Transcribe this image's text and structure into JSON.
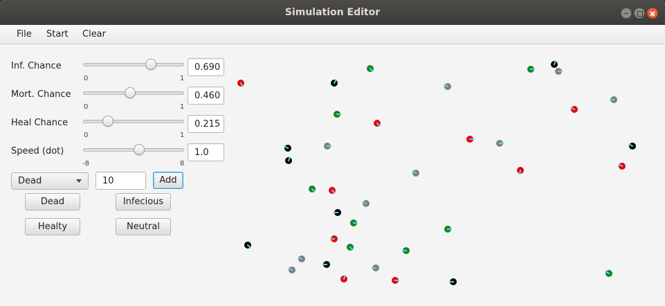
{
  "window": {
    "title": "Simulation Editor"
  },
  "menu": {
    "file": "File",
    "start": "Start",
    "clear": "Clear"
  },
  "sliders": [
    {
      "label": "Inf. Chance",
      "min_label": "0",
      "max_label": "1",
      "min": 0,
      "max": 1,
      "value": 0.69,
      "value_text": "0.690"
    },
    {
      "label": "Mort. Chance",
      "min_label": "0",
      "max_label": "1",
      "min": 0,
      "max": 1,
      "value": 0.46,
      "value_text": "0.460"
    },
    {
      "label": "Heal Chance",
      "min_label": "0",
      "max_label": "1",
      "min": 0,
      "max": 1,
      "value": 0.215,
      "value_text": "0.215"
    },
    {
      "label": "Speed (dot)",
      "min_label": "-8",
      "max_label": "8",
      "min": -8,
      "max": 8,
      "value": 1.0,
      "value_text": "1.0"
    }
  ],
  "add_row": {
    "type_selected": "Dead",
    "count_value": "10",
    "add_label": "Add"
  },
  "buttons": {
    "dead": "Dead",
    "infecious": "Infecious",
    "healty": "Healty",
    "neutral": "Neutral"
  },
  "colors": {
    "dead": "#000000",
    "infected": "#e8000b",
    "healthy": "#0a8a1c",
    "neutral": "#808080",
    "heading": "#5fd3e8"
  },
  "dots": [
    {
      "state": "infected"
    },
    {
      "state": "dead"
    },
    {
      "state": "healthy"
    },
    {
      "state": "neutral"
    },
    {
      "state": "healthy"
    },
    {
      "state": "dead"
    },
    {
      "state": "neutral"
    },
    {
      "state": "neutral"
    },
    {
      "state": "healthy"
    },
    {
      "state": "infected"
    },
    {
      "state": "infected"
    },
    {
      "state": "dead"
    },
    {
      "state": "neutral"
    },
    {
      "state": "infected"
    },
    {
      "state": "neutral"
    },
    {
      "state": "dead"
    },
    {
      "state": "dead"
    },
    {
      "state": "infected"
    },
    {
      "state": "neutral"
    },
    {
      "state": "infected"
    },
    {
      "state": "healthy"
    },
    {
      "state": "infected"
    },
    {
      "state": "neutral"
    },
    {
      "state": "dead"
    },
    {
      "state": "healthy"
    },
    {
      "state": "healthy"
    },
    {
      "state": "infected"
    },
    {
      "state": "healthy"
    },
    {
      "state": "healthy"
    },
    {
      "state": "dead"
    },
    {
      "state": "neutral"
    },
    {
      "state": "neutral"
    },
    {
      "state": "dead"
    },
    {
      "state": "neutral"
    },
    {
      "state": "infected"
    },
    {
      "state": "infected"
    },
    {
      "state": "dead"
    },
    {
      "state": "healthy"
    }
  ]
}
